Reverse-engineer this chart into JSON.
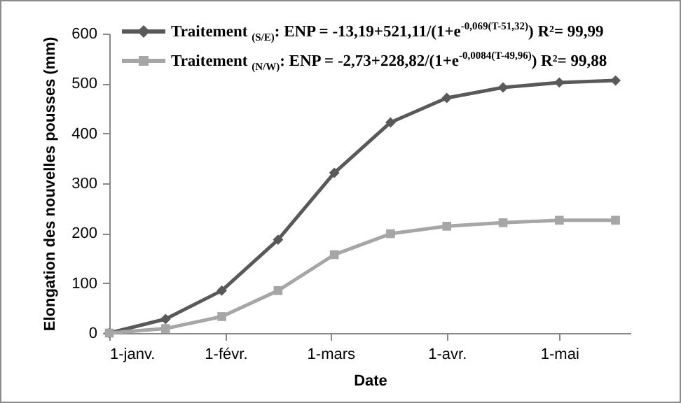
{
  "chart_data": {
    "type": "line",
    "xlabel": "Date",
    "ylabel": "Elongation des nouvelles pousses (mm)",
    "x": [
      "--01-01",
      "--01-16",
      "--01-31",
      "--02-15",
      "--03-02",
      "--03-17",
      "--04-01",
      "--04-16",
      "--05-01",
      "--05-16"
    ],
    "series": [
      {
        "name": "Traitement $_{(S/E)}$: ENP = -13,19+521,11/(1+e$^{-0,069(T-51,32)}$) R²= 99,99",
        "color": "#595959",
        "marker": "diamond",
        "values": [
          0,
          28,
          85,
          187,
          321,
          422,
          471,
          492,
          502,
          506
        ]
      },
      {
        "name": "Traitement $_{(N/W)}$: ENP = -2,73+228,82/(1+e$^{-0,0084(T-49,96)}$) R²= 99,88",
        "color": "#a6a6a6",
        "marker": "square",
        "values": [
          0,
          9,
          33,
          85,
          157,
          199,
          214,
          221,
          226,
          226
        ]
      }
    ],
    "xlim": [
      "--01-01",
      "--05-20"
    ],
    "xticks": [
      {
        "value": "--01-01",
        "label": "1-janv."
      },
      {
        "value": "--02-01",
        "label": "1-févr."
      },
      {
        "value": "--03-01",
        "label": "1-mars"
      },
      {
        "value": "--04-01",
        "label": "1-avr."
      },
      {
        "value": "--05-01",
        "label": "1-mai"
      }
    ],
    "ylim": [
      0,
      600
    ],
    "yticks": [
      0,
      100,
      200,
      300,
      400,
      500,
      600
    ],
    "grid": false,
    "legend": "top",
    "line_style": "solid"
  }
}
